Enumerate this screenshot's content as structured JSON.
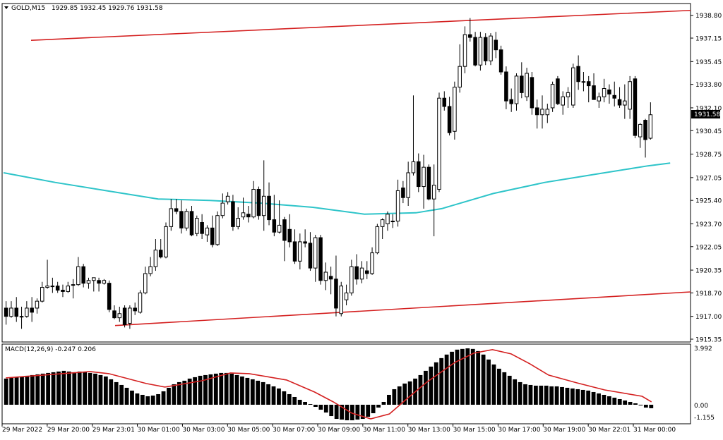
{
  "header": {
    "symbol": "GOLD,M15",
    "ohlc": "1929.85 1932.45 1929.76 1931.58",
    "menu_icon": "triangle-down-icon"
  },
  "macd": {
    "label": "MACD(12,26,9) -0.247 0.206",
    "ymax_label": "3.992",
    "zero_label": "0.00",
    "ymin_label": "-1.155"
  },
  "price_axis": {
    "ticks": [
      "1938.80",
      "1937.15",
      "1935.45",
      "1933.80",
      "1932.10",
      "1930.45",
      "1928.75",
      "1927.05",
      "1925.40",
      "1923.70",
      "1922.05",
      "1920.35",
      "1918.70",
      "1917.00",
      "1915.35"
    ],
    "current_price": "1931.58"
  },
  "time_axis": {
    "labels": [
      "29 Mar 2022",
      "29 Mar 20:00",
      "29 Mar 23:01",
      "30 Mar 01:00",
      "30 Mar 03:00",
      "30 Mar 05:00",
      "30 Mar 07:00",
      "30 Mar 09:00",
      "30 Mar 11:00",
      "30 Mar 13:00",
      "30 Mar 15:00",
      "30 Mar 17:00",
      "30 Mar 19:00",
      "30 Mar 22:01",
      "31 Mar 00:00"
    ]
  },
  "colors": {
    "bull_candle": "#ffffff",
    "bear_candle": "#000000",
    "moving_average": "#2ec4c9",
    "channel_line": "#d42020",
    "macd_signal": "#d42020",
    "macd_histogram": "#000000"
  },
  "chart_data": [
    {
      "type": "candlestick",
      "symbol": "GOLD",
      "timeframe": "M15",
      "ylim": [
        1915.35,
        1939.5
      ],
      "channel": {
        "upper": [
          [
            0,
            1936.9
          ],
          [
            130,
            1939.1
          ]
        ],
        "lower": [
          [
            20,
            1916.3
          ],
          [
            130,
            1918.7
          ]
        ]
      },
      "moving_average": [
        [
          0,
          1927.4
        ],
        [
          10,
          1926.7
        ],
        [
          20,
          1926.1
        ],
        [
          30,
          1925.5
        ],
        [
          40,
          1925.4
        ],
        [
          50,
          1925.2
        ],
        [
          60,
          1924.9
        ],
        [
          70,
          1924.4
        ],
        [
          80,
          1924.5
        ],
        [
          85,
          1924.8
        ],
        [
          95,
          1925.9
        ],
        [
          105,
          1926.7
        ],
        [
          115,
          1927.3
        ],
        [
          125,
          1927.9
        ],
        [
          130,
          1928.1
        ]
      ],
      "candles": [
        [
          1917.6,
          1918.1,
          1916.4,
          1917.0
        ],
        [
          1917.0,
          1918.1,
          1916.9,
          1917.6
        ],
        [
          1917.6,
          1918.4,
          1916.6,
          1917.0
        ],
        [
          1917.0,
          1917.7,
          1916.1,
          1917.0
        ],
        [
          1917.0,
          1918.1,
          1916.9,
          1917.6
        ],
        [
          1917.6,
          1918.4,
          1916.6,
          1917.3
        ],
        [
          1917.6,
          1918.3,
          1917.2,
          1918.1
        ],
        [
          1918.1,
          1919.5,
          1918.0,
          1919.1
        ],
        [
          1919.1,
          1921.1,
          1919.0,
          1919.2
        ],
        [
          1919.2,
          1919.8,
          1918.7,
          1919.2
        ],
        [
          1919.2,
          1919.5,
          1918.7,
          1918.9
        ],
        [
          1918.9,
          1919.3,
          1918.4,
          1918.8
        ],
        [
          1918.8,
          1919.5,
          1918.7,
          1919.2
        ],
        [
          1919.3,
          1919.7,
          1918.3,
          1919.3
        ],
        [
          1919.3,
          1921.3,
          1919.2,
          1920.6
        ],
        [
          1920.6,
          1920.8,
          1919.1,
          1919.4
        ],
        [
          1919.4,
          1919.8,
          1919.0,
          1919.6
        ],
        [
          1919.6,
          1919.8,
          1918.8,
          1919.8
        ],
        [
          1919.6,
          1919.8,
          1918.8,
          1919.4
        ],
        [
          1919.4,
          1919.7,
          1919.3,
          1919.6
        ],
        [
          1919.4,
          1919.6,
          1917.3,
          1917.5
        ],
        [
          1917.4,
          1917.8,
          1916.8,
          1916.9
        ],
        [
          1916.9,
          1917.7,
          1916.6,
          1917.2
        ],
        [
          1917.6,
          1917.8,
          1916.2,
          1916.4
        ],
        [
          1916.5,
          1917.8,
          1916.1,
          1917.6
        ],
        [
          1917.6,
          1918.0,
          1917.1,
          1917.4
        ],
        [
          1917.3,
          1918.9,
          1917.2,
          1918.7
        ],
        [
          1918.7,
          1920.6,
          1918.6,
          1920.1
        ],
        [
          1920.1,
          1921.3,
          1919.9,
          1920.6
        ],
        [
          1920.6,
          1922.6,
          1920.3,
          1921.8
        ],
        [
          1921.8,
          1922.6,
          1921.2,
          1921.3
        ],
        [
          1921.3,
          1923.8,
          1921.2,
          1923.5
        ],
        [
          1923.5,
          1925.5,
          1923.2,
          1924.8
        ],
        [
          1924.8,
          1925.5,
          1924.4,
          1924.6
        ],
        [
          1924.6,
          1925.4,
          1923.0,
          1923.4
        ],
        [
          1923.4,
          1924.8,
          1923.2,
          1924.6
        ],
        [
          1924.6,
          1925.0,
          1922.8,
          1922.9
        ],
        [
          1923.0,
          1924.3,
          1922.8,
          1924.1
        ],
        [
          1923.8,
          1924.4,
          1922.6,
          1923.0
        ],
        [
          1922.9,
          1923.6,
          1922.4,
          1923.4
        ],
        [
          1923.4,
          1924.3,
          1922.0,
          1922.2
        ],
        [
          1922.2,
          1924.6,
          1922.1,
          1924.3
        ],
        [
          1924.3,
          1925.9,
          1924.1,
          1925.2
        ],
        [
          1925.3,
          1926.0,
          1925.1,
          1925.7
        ],
        [
          1925.3,
          1925.8,
          1923.2,
          1923.5
        ],
        [
          1923.5,
          1924.9,
          1923.3,
          1924.1
        ],
        [
          1924.2,
          1925.6,
          1924.0,
          1924.5
        ],
        [
          1924.4,
          1925.0,
          1923.8,
          1924.2
        ],
        [
          1924.2,
          1926.8,
          1924.1,
          1926.2
        ],
        [
          1926.2,
          1926.4,
          1924.0,
          1924.3
        ],
        [
          1924.3,
          1928.3,
          1923.2,
          1925.7
        ],
        [
          1925.7,
          1926.7,
          1923.6,
          1924.0
        ],
        [
          1924.0,
          1925.8,
          1922.8,
          1923.1
        ],
        [
          1923.1,
          1925.4,
          1923.0,
          1923.6
        ],
        [
          1924.0,
          1924.2,
          1921.0,
          1922.5
        ],
        [
          1923.3,
          1924.4,
          1922.0,
          1922.4
        ],
        [
          1922.4,
          1923.3,
          1920.8,
          1921.0
        ],
        [
          1921.0,
          1923.0,
          1920.4,
          1922.4
        ],
        [
          1922.4,
          1923.3,
          1922.0,
          1922.3
        ],
        [
          1922.3,
          1923.1,
          1920.3,
          1920.5
        ],
        [
          1920.5,
          1922.9,
          1919.5,
          1922.7
        ],
        [
          1922.7,
          1922.9,
          1919.3,
          1919.6
        ],
        [
          1919.6,
          1920.9,
          1918.9,
          1920.2
        ],
        [
          1919.9,
          1920.6,
          1918.6,
          1919.7
        ],
        [
          1919.7,
          1921.4,
          1917.0,
          1917.6
        ],
        [
          1917.2,
          1919.5,
          1917.0,
          1919.2
        ],
        [
          1918.2,
          1919.3,
          1917.8,
          1918.7
        ],
        [
          1918.7,
          1921.1,
          1918.5,
          1920.6
        ],
        [
          1920.6,
          1921.5,
          1919.3,
          1919.7
        ],
        [
          1919.7,
          1921.0,
          1919.4,
          1920.5
        ],
        [
          1920.3,
          1921.0,
          1919.7,
          1920.1
        ],
        [
          1920.1,
          1922.0,
          1920.0,
          1921.6
        ],
        [
          1921.6,
          1923.7,
          1921.5,
          1923.5
        ],
        [
          1923.5,
          1924.1,
          1922.6,
          1924.0
        ],
        [
          1923.7,
          1924.6,
          1923.2,
          1924.4
        ],
        [
          1923.9,
          1924.4,
          1923.4,
          1923.9
        ],
        [
          1923.9,
          1926.9,
          1923.5,
          1926.1
        ],
        [
          1926.3,
          1926.8,
          1925.2,
          1925.6
        ],
        [
          1925.6,
          1928.2,
          1925.0,
          1927.4
        ],
        [
          1927.4,
          1933.0,
          1927.2,
          1928.2
        ],
        [
          1928.2,
          1928.8,
          1926.0,
          1926.4
        ],
        [
          1926.4,
          1928.7,
          1924.8,
          1927.8
        ],
        [
          1927.8,
          1928.0,
          1925.4,
          1925.5
        ],
        [
          1925.5,
          1928.0,
          1922.8,
          1926.5
        ],
        [
          1926.2,
          1933.2,
          1926.0,
          1932.8
        ],
        [
          1932.8,
          1933.3,
          1931.9,
          1932.2
        ],
        [
          1932.2,
          1932.9,
          1930.1,
          1930.3
        ],
        [
          1930.4,
          1934.0,
          1929.8,
          1933.6
        ],
        [
          1933.6,
          1936.7,
          1933.2,
          1935.1
        ],
        [
          1935.1,
          1938.0,
          1934.6,
          1937.4
        ],
        [
          1937.4,
          1938.6,
          1936.9,
          1937.2
        ],
        [
          1937.2,
          1937.6,
          1935.1,
          1935.2
        ],
        [
          1935.2,
          1937.6,
          1934.8,
          1937.2
        ],
        [
          1937.2,
          1937.5,
          1935.2,
          1935.5
        ],
        [
          1935.5,
          1937.5,
          1935.2,
          1937.3
        ],
        [
          1937.0,
          1937.6,
          1935.7,
          1936.3
        ],
        [
          1936.3,
          1936.6,
          1934.5,
          1934.7
        ],
        [
          1934.7,
          1935.1,
          1932.0,
          1932.6
        ],
        [
          1932.7,
          1933.5,
          1931.8,
          1932.4
        ],
        [
          1932.4,
          1934.6,
          1931.9,
          1934.4
        ],
        [
          1934.4,
          1935.4,
          1932.8,
          1933.2
        ],
        [
          1932.9,
          1935.0,
          1932.6,
          1934.6
        ],
        [
          1934.3,
          1934.7,
          1931.6,
          1932.1
        ],
        [
          1932.1,
          1932.7,
          1930.6,
          1931.6
        ],
        [
          1931.6,
          1933.0,
          1930.6,
          1932.0
        ],
        [
          1931.6,
          1932.4,
          1931.0,
          1932.0
        ],
        [
          1932.1,
          1934.0,
          1931.8,
          1933.8
        ],
        [
          1934.2,
          1934.4,
          1932.3,
          1932.4
        ],
        [
          1932.3,
          1933.3,
          1931.6,
          1932.9
        ],
        [
          1932.9,
          1933.6,
          1932.1,
          1933.2
        ],
        [
          1932.3,
          1935.3,
          1932.1,
          1935.0
        ],
        [
          1935.1,
          1935.9,
          1933.4,
          1934.0
        ],
        [
          1934.0,
          1934.7,
          1933.3,
          1934.0
        ],
        [
          1934.0,
          1934.4,
          1932.5,
          1933.7
        ],
        [
          1933.7,
          1934.6,
          1932.7,
          1932.7
        ],
        [
          1932.6,
          1933.2,
          1932.1,
          1932.9
        ],
        [
          1932.9,
          1934.2,
          1932.5,
          1933.5
        ],
        [
          1933.4,
          1933.8,
          1932.4,
          1933.1
        ],
        [
          1933.0,
          1934.0,
          1932.2,
          1932.8
        ],
        [
          1932.7,
          1933.6,
          1932.1,
          1932.3
        ],
        [
          1932.3,
          1933.8,
          1931.3,
          1932.6
        ],
        [
          1932.0,
          1934.4,
          1931.3,
          1934.0
        ],
        [
          1934.2,
          1934.4,
          1929.9,
          1930.1
        ],
        [
          1930.0,
          1931.0,
          1929.2,
          1930.9
        ],
        [
          1931.2,
          1931.3,
          1928.5,
          1929.8
        ],
        [
          1929.9,
          1932.5,
          1929.8,
          1931.6
        ]
      ]
    },
    {
      "type": "macd",
      "parameters": [
        12,
        26,
        9
      ],
      "ylim": [
        -1.155,
        3.992
      ],
      "histogram": [
        1.85,
        1.9,
        1.95,
        2.0,
        2.05,
        2.1,
        2.15,
        2.2,
        2.25,
        2.3,
        2.35,
        2.4,
        2.35,
        2.3,
        2.35,
        2.3,
        2.25,
        2.2,
        2.1,
        2.0,
        1.8,
        1.6,
        1.4,
        1.2,
        1.0,
        0.8,
        0.7,
        0.6,
        0.65,
        0.75,
        0.95,
        1.2,
        1.45,
        1.6,
        1.7,
        1.85,
        1.95,
        2.05,
        2.1,
        2.15,
        2.2,
        2.25,
        2.25,
        2.2,
        2.1,
        2.0,
        1.9,
        1.8,
        1.7,
        1.6,
        1.45,
        1.3,
        1.15,
        0.95,
        0.75,
        0.55,
        0.35,
        0.2,
        0.05,
        -0.15,
        -0.35,
        -0.55,
        -0.8,
        -1.0,
        -1.05,
        -1.1,
        -1.1,
        -1.05,
        -1.0,
        -0.85,
        -0.6,
        -0.2,
        0.2,
        0.7,
        1.1,
        1.3,
        1.5,
        1.65,
        1.85,
        2.1,
        2.4,
        2.7,
        3.0,
        3.3,
        3.55,
        3.75,
        3.9,
        3.95,
        3.99,
        3.95,
        3.8,
        3.55,
        3.2,
        2.85,
        2.55,
        2.3,
        2.05,
        1.8,
        1.6,
        1.45,
        1.4,
        1.35,
        1.35,
        1.35,
        1.3,
        1.3,
        1.25,
        1.2,
        1.15,
        1.1,
        1.05,
        1.0,
        0.9,
        0.8,
        0.7,
        0.6,
        0.5,
        0.4,
        0.3,
        0.2,
        0.1,
        -0.05,
        -0.2,
        -0.247
      ],
      "signal": [
        [
          0,
          1.9
        ],
        [
          10,
          2.15
        ],
        [
          18,
          2.35
        ],
        [
          22,
          2.2
        ],
        [
          30,
          1.5
        ],
        [
          34,
          1.25
        ],
        [
          42,
          1.7
        ],
        [
          48,
          2.25
        ],
        [
          52,
          2.2
        ],
        [
          60,
          1.75
        ],
        [
          66,
          0.9
        ],
        [
          70,
          0.2
        ],
        [
          74,
          -0.6
        ],
        [
          78,
          -1.0
        ],
        [
          82,
          -0.65
        ],
        [
          86,
          0.5
        ],
        [
          90,
          1.6
        ],
        [
          96,
          3.0
        ],
        [
          100,
          3.65
        ],
        [
          104,
          3.9
        ],
        [
          108,
          3.6
        ],
        [
          112,
          2.9
        ],
        [
          116,
          2.1
        ],
        [
          122,
          1.55
        ],
        [
          128,
          1.05
        ],
        [
          136,
          0.6
        ],
        [
          138,
          0.206
        ]
      ]
    }
  ]
}
